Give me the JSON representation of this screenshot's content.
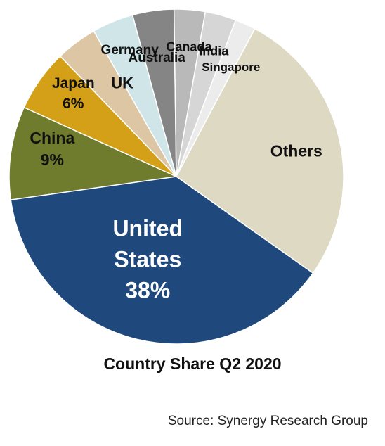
{
  "chart_data": {
    "type": "pie",
    "title": "Country Share Q2 2020",
    "source": "Source: Synergy Research Group",
    "slices": [
      {
        "name": "China",
        "value": 9,
        "value_label": "9%",
        "color": "#6f7b2d",
        "label_color": "#111111"
      },
      {
        "name": "Japan",
        "value": 6,
        "value_label": "6%",
        "color": "#d4a017",
        "label_color": "#111111"
      },
      {
        "name": "UK",
        "value": 4,
        "value_label": "",
        "color": "#dcc6a3",
        "label_color": "#111111"
      },
      {
        "name": "Germany",
        "value": 4,
        "value_label": "",
        "color": "#cfe5e8",
        "label_color": "#111111"
      },
      {
        "name": "Australia",
        "value": 4,
        "value_label": "",
        "color": "#858585",
        "label_color": "#111111"
      },
      {
        "name": "Canada",
        "value": 3,
        "value_label": "",
        "color": "#b9b9b9",
        "label_color": "#111111"
      },
      {
        "name": "India",
        "value": 3,
        "value_label": "",
        "color": "#d6d6d6",
        "label_color": "#111111"
      },
      {
        "name": "Singapore",
        "value": 2,
        "value_label": "",
        "color": "#ececec",
        "label_color": "#111111"
      },
      {
        "name": "Others",
        "value": 27,
        "value_label": "",
        "color": "#ddd9c3",
        "label_color": "#111111"
      },
      {
        "name": "United States",
        "value": 38,
        "value_label": "38%",
        "color": "#1f497d",
        "label_color": "#ffffff"
      }
    ]
  }
}
